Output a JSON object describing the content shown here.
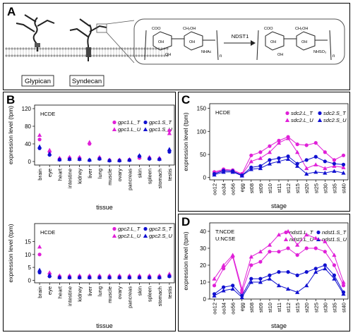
{
  "panelA": {
    "label": "A",
    "glypican": "Glypican",
    "syndecan": "Syndecan",
    "enzyme": "NDST1",
    "left": {
      "coo": "COO",
      "ch2oh": "CH₂OH",
      "oh1": "OH",
      "oh2": "OH",
      "oh3": "OH",
      "sub": "NHAc",
      "n": "n"
    },
    "right": {
      "coo": "COO",
      "ch2oh": "CH₂OH",
      "oh1": "OH",
      "oh2": "OH",
      "oh3": "OH",
      "sub": "NHSO₃",
      "n": "n"
    }
  },
  "panelB": {
    "label": "B"
  },
  "panelC": {
    "label": "C"
  },
  "panelD": {
    "label": "D"
  },
  "colors": {
    "T": "#e020d8",
    "U": "#1010d0"
  },
  "chart_data": [
    {
      "id": "B1",
      "type": "scatter",
      "ylabel": "expression level (tpm)",
      "xlabel": "tissue",
      "tag": "HCDE",
      "ylim": [
        0,
        120
      ],
      "yticks": [
        0,
        40,
        80,
        120
      ],
      "categories": [
        "brain",
        "eye",
        "heart",
        "intestine",
        "kidney",
        "liver",
        "lung",
        "muscle",
        "ovary",
        "pancreas",
        "skin",
        "spleen",
        "stomach",
        "testis"
      ],
      "series": [
        {
          "name": "gpc1.L_T",
          "marker": "circle",
          "color": "#e020d8",
          "values": [
            50,
            22,
            6,
            8,
            8,
            40,
            8,
            3,
            3,
            4,
            8,
            8,
            6,
            70
          ]
        },
        {
          "name": "gpc1.L_U",
          "marker": "triangle",
          "color": "#e020d8",
          "values": [
            60,
            26,
            8,
            10,
            10,
            44,
            10,
            4,
            4,
            5,
            10,
            10,
            8,
            64
          ]
        },
        {
          "name": "gpc1.S_T",
          "marker": "circle",
          "color": "#1010d0",
          "values": [
            30,
            15,
            4,
            5,
            5,
            3,
            6,
            2,
            2,
            3,
            12,
            6,
            5,
            22
          ]
        },
        {
          "name": "gpc1.S_U",
          "marker": "triangle",
          "color": "#1010d0",
          "values": [
            34,
            18,
            5,
            6,
            6,
            4,
            7,
            3,
            3,
            4,
            14,
            8,
            6,
            28
          ]
        }
      ]
    },
    {
      "id": "B2",
      "type": "scatter",
      "ylabel": "expression level (tpm)",
      "xlabel": "tissue",
      "tag": "HCDE",
      "ylim": [
        0,
        20
      ],
      "yticks": [
        0,
        5,
        10,
        15
      ],
      "categories": [
        "brain",
        "eye",
        "heart",
        "intestine",
        "kidney",
        "liver",
        "lung",
        "muscle",
        "ovary",
        "pancreas",
        "skin",
        "spleen",
        "stomach",
        "testis"
      ],
      "series": [
        {
          "name": "gpc2.L_T",
          "marker": "circle",
          "color": "#e020d8",
          "values": [
            10,
            2.5,
            1.5,
            1.5,
            1.5,
            1.5,
            1.5,
            1.5,
            1.5,
            1.5,
            1.5,
            1.5,
            1.5,
            2
          ]
        },
        {
          "name": "gpc2.L_U",
          "marker": "triangle",
          "color": "#e020d8",
          "values": [
            13,
            3,
            1.8,
            1.8,
            1.8,
            1.8,
            1.8,
            1.8,
            1.8,
            1.8,
            1.8,
            1.8,
            1.8,
            2.5
          ]
        },
        {
          "name": "gpc2.S_T",
          "marker": "circle",
          "color": "#1010d0",
          "values": [
            3,
            1.5,
            1,
            1,
            1,
            1,
            1,
            1,
            1,
            1,
            1,
            1,
            1,
            1.5
          ]
        },
        {
          "name": "gpc2.S_U",
          "marker": "triangle",
          "color": "#1010d0",
          "values": [
            4,
            2,
            1.2,
            1.2,
            1.2,
            1.2,
            1.2,
            1.2,
            1.2,
            1.2,
            1.2,
            1.2,
            1.2,
            1.8
          ]
        }
      ]
    },
    {
      "id": "C",
      "type": "line",
      "ylabel": "expression level (tpm)",
      "xlabel": "stage",
      "tag": "HCDE",
      "ylim": [
        0,
        100
      ],
      "yticks": [
        0,
        50,
        100,
        150
      ],
      "categories": [
        "oo12",
        "oo34",
        "oo56",
        "egg",
        "st08",
        "st09",
        "st10",
        "st11",
        "st12",
        "st15",
        "st20",
        "st25",
        "st30",
        "st35",
        "st40"
      ],
      "series": [
        {
          "name": "sdc2.L_T",
          "marker": "circle",
          "color": "#e020d8",
          "values": [
            12,
            18,
            16,
            8,
            48,
            55,
            68,
            80,
            88,
            72,
            70,
            75,
            55,
            38,
            48
          ]
        },
        {
          "name": "sdc2.L_U",
          "marker": "triangle",
          "color": "#e020d8",
          "values": [
            10,
            16,
            14,
            6,
            35,
            42,
            55,
            75,
            85,
            55,
            20,
            28,
            20,
            25,
            22
          ]
        },
        {
          "name": "sdc2.S_T",
          "marker": "circle",
          "color": "#1010d0",
          "values": [
            8,
            15,
            14,
            5,
            22,
            25,
            38,
            42,
            46,
            30,
            38,
            45,
            35,
            30,
            28
          ]
        },
        {
          "name": "sdc2.S_U",
          "marker": "triangle",
          "color": "#1010d0",
          "values": [
            6,
            12,
            12,
            4,
            18,
            20,
            30,
            35,
            40,
            25,
            8,
            12,
            10,
            14,
            10
          ]
        }
      ]
    },
    {
      "id": "D",
      "type": "line",
      "ylabel": "expression level (tpm)",
      "xlabel": "stage",
      "tag": "T:NCDE\nU:NCSE",
      "ylim": [
        0,
        40
      ],
      "yticks": [
        0,
        10,
        20,
        30,
        40
      ],
      "categories": [
        "oo12",
        "oo34",
        "oo56",
        "egg",
        "st08",
        "st09",
        "st10",
        "st11",
        "st12",
        "st15",
        "st20",
        "st25",
        "st30",
        "st35",
        "st40"
      ],
      "series": [
        {
          "name": "ndst1.L_T",
          "marker": "circle",
          "color": "#e020d8",
          "values": [
            8,
            18,
            25,
            4,
            20,
            22,
            28,
            28,
            30,
            26,
            30,
            30,
            28,
            20,
            8
          ]
        },
        {
          "name": "ndst1.L_U",
          "marker": "triangle",
          "color": "#e020d8",
          "values": [
            12,
            20,
            26,
            6,
            25,
            28,
            32,
            38,
            40,
            32,
            38,
            36,
            34,
            26,
            10
          ]
        },
        {
          "name": "ndst1.S_T",
          "marker": "circle",
          "color": "#1010d0",
          "values": [
            3,
            7,
            8,
            2,
            12,
            12,
            14,
            16,
            16,
            14,
            16,
            18,
            20,
            14,
            4
          ]
        },
        {
          "name": "ndst1.S_U",
          "marker": "triangle",
          "color": "#1010d0",
          "values": [
            2,
            5,
            6,
            1,
            10,
            10,
            12,
            8,
            6,
            4,
            8,
            16,
            18,
            12,
            3
          ]
        }
      ]
    }
  ]
}
